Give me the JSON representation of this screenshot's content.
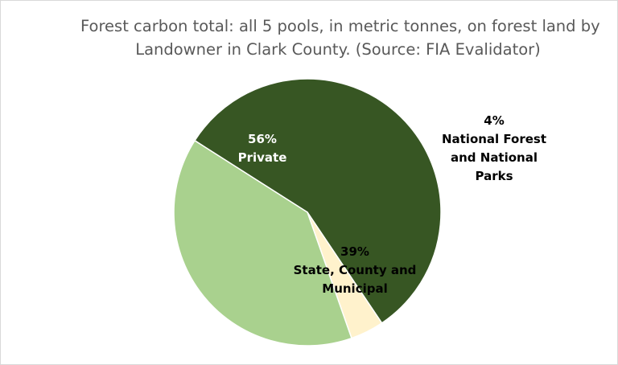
{
  "chart_data": {
    "type": "pie",
    "title": [
      "Forest carbon total: all 5 pools, in metric tonnes, on forest land by",
      "Landowner in Clark County.  (Source: FIA Evalidator)"
    ],
    "slices": [
      {
        "label": [
          "56%",
          "Private"
        ],
        "value": 56,
        "color": "#375623",
        "text_color": "#ffffff"
      },
      {
        "label": [
          "4%",
          "National Forest",
          "and National",
          "Parks"
        ],
        "value": 4,
        "color": "#fff2cc",
        "text_color": "#000000"
      },
      {
        "label": [
          "39%",
          "State, County and",
          "Municipal"
        ],
        "value": 39,
        "color": "#a9d18e",
        "text_color": "#000000"
      }
    ]
  }
}
